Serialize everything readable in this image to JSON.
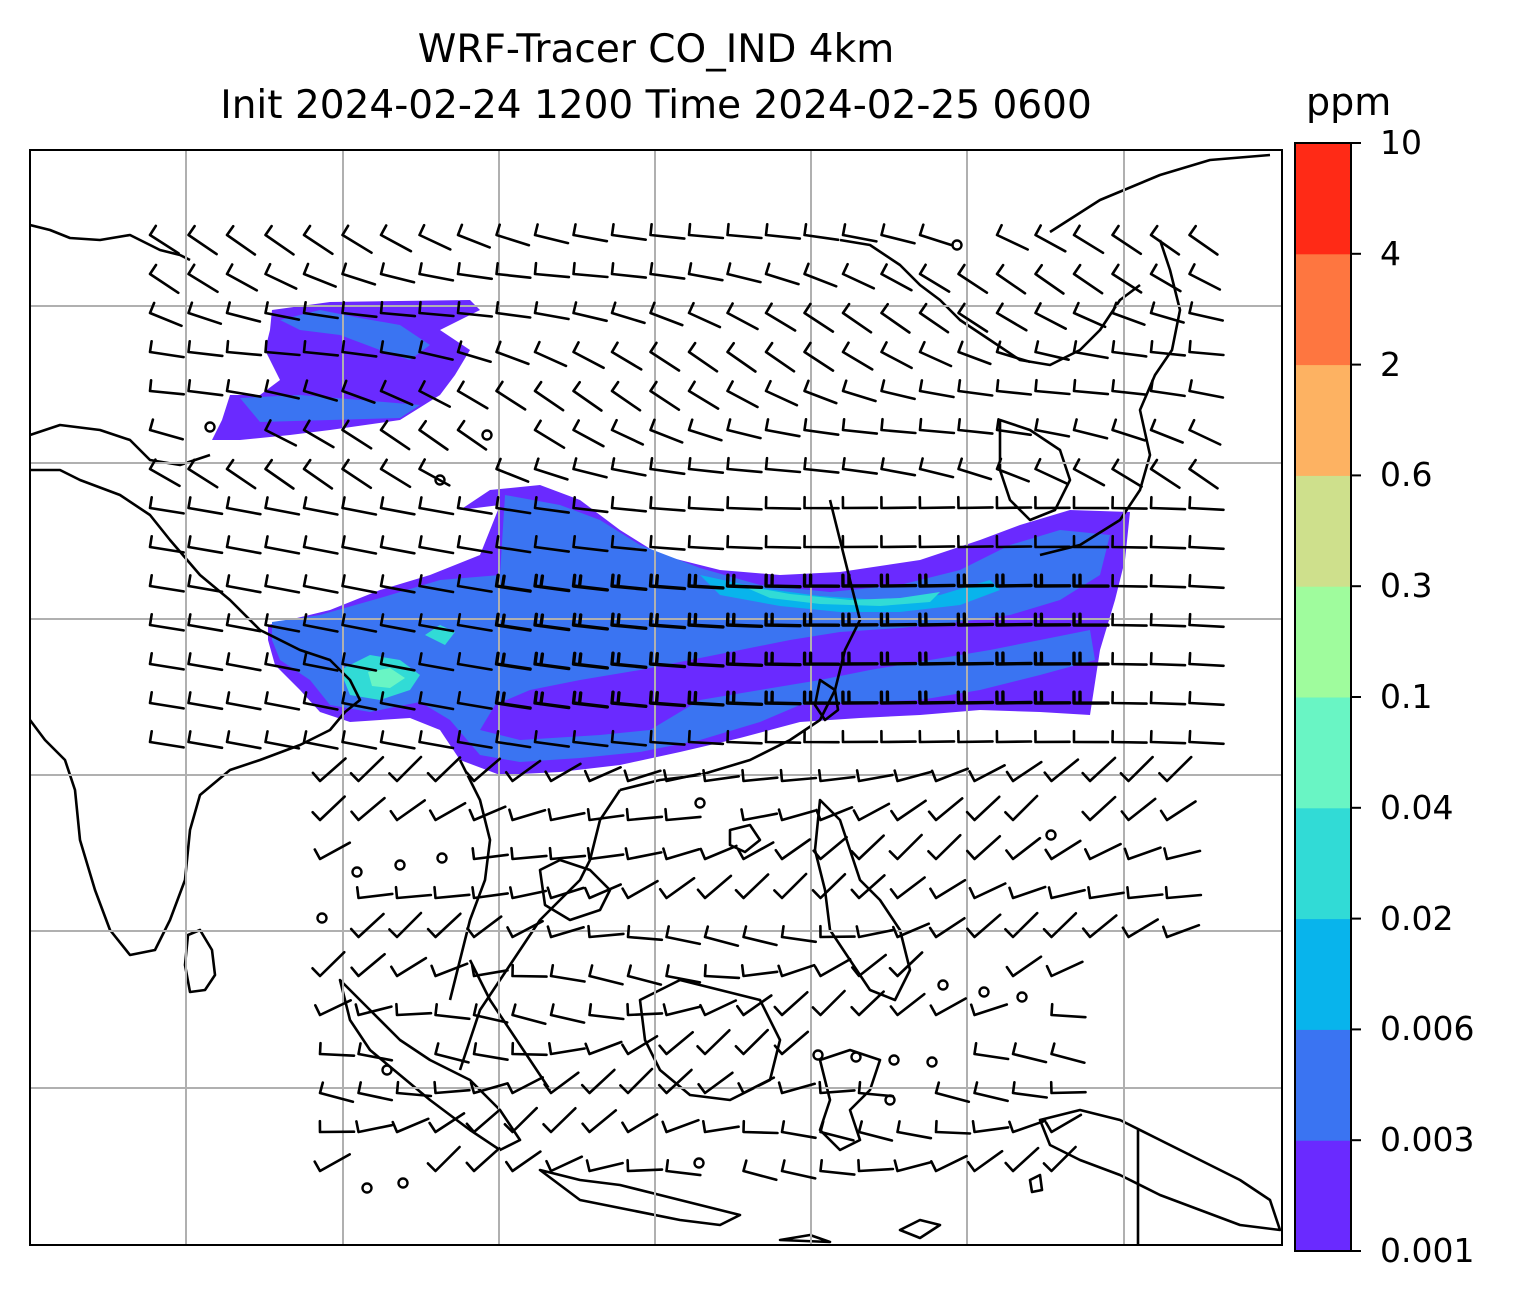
{
  "title": {
    "line1": "WRF-Tracer CO_IND 4km",
    "line2": "Init 2024-02-24 1200 Time 2024-02-25 0600"
  },
  "colorbar": {
    "unit": "ppm",
    "levels": [
      "0.001",
      "0.003",
      "0.006",
      "0.02",
      "0.04",
      "0.1",
      "0.3",
      "0.6",
      "2",
      "4",
      "10"
    ],
    "colors": [
      "#6a2aff",
      "#3a74f2",
      "#08b4ec",
      "#31dbd6",
      "#69f5c4",
      "#9ffc9d",
      "#cee08c",
      "#fdb262",
      "#fe7640",
      "#ff2a16"
    ]
  },
  "map": {
    "field": "CO_IND tracer concentration",
    "gridlines": true,
    "coastlines": true,
    "wind_barbs": true
  }
}
